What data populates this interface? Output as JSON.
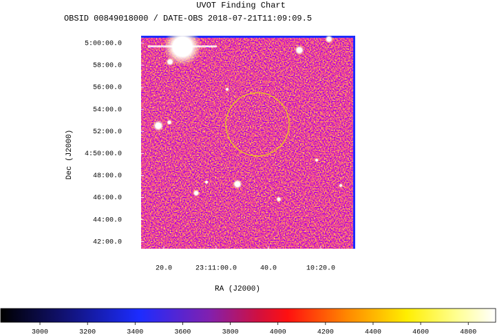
{
  "chart_data": {
    "type": "image",
    "title": "UVOT Finding Chart",
    "subtitle": "OBSID 00849018000 / DATE-OBS 2018-07-21T11:09:09.5",
    "x_label": "RA (J2000)",
    "y_label": "Dec (J2000)",
    "xlim": [
      347.8695,
      347.5285
    ],
    "xticks": [
      {
        "value": 347.8333,
        "label": "20.0"
      },
      {
        "value": 347.75,
        "label": "23:11:00.0"
      },
      {
        "value": 347.6667,
        "label": "40.0"
      },
      {
        "value": 347.5833,
        "label": "10:20.0"
      }
    ],
    "ylim": [
      4.6893,
      5.0113
    ],
    "yticks": [
      {
        "value": 5.0,
        "label": "5:00:00.0"
      },
      {
        "value": 4.9667,
        "label": "58:00.0"
      },
      {
        "value": 4.9333,
        "label": "56:00.0"
      },
      {
        "value": 4.9,
        "label": "54:00.0"
      },
      {
        "value": 4.8667,
        "label": "52:00.0"
      },
      {
        "value": 4.8333,
        "label": "4:50:00.0"
      },
      {
        "value": 4.8,
        "label": "48:00.0"
      },
      {
        "value": 4.7667,
        "label": "46:00.0"
      },
      {
        "value": 4.7333,
        "label": "44:00.0"
      },
      {
        "value": 4.7,
        "label": "42:00.0"
      }
    ],
    "colorbar": {
      "clim": [
        2835,
        4915
      ],
      "ticks": [
        3000,
        3200,
        3400,
        3600,
        3800,
        4000,
        4200,
        4400,
        4600,
        4800
      ]
    }
  }
}
